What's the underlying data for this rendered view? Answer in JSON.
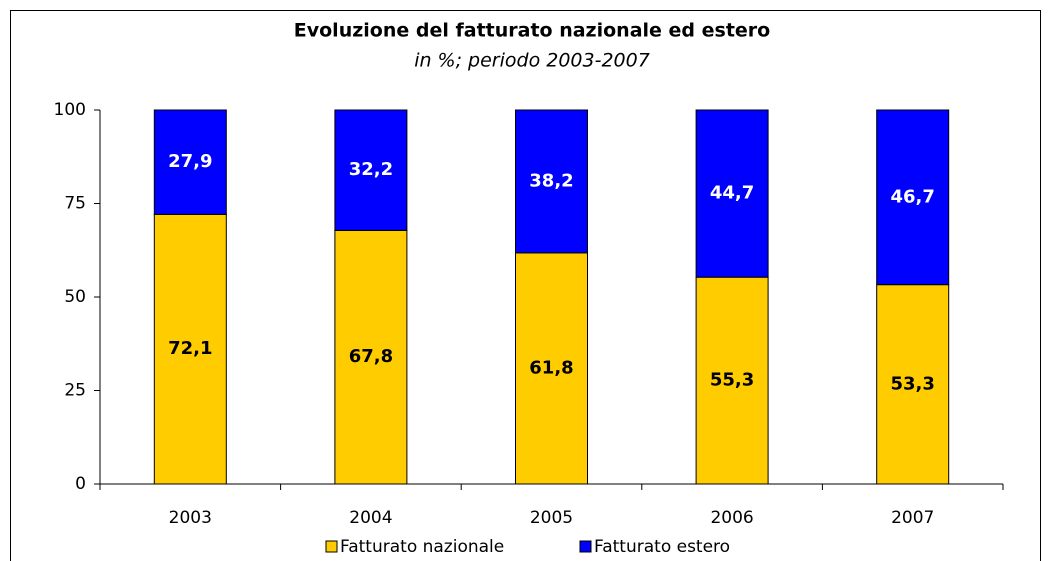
{
  "chart_data": {
    "type": "stacked_bar",
    "title": "Evoluzione del fatturato nazionale ed estero",
    "subtitle": "in %; periodo 2003-2007",
    "categories": [
      "2003",
      "2004",
      "2005",
      "2006",
      "2007"
    ],
    "series": [
      {
        "name": "Fatturato nazionale",
        "color": "#FFCC00",
        "values": [
          72.1,
          67.8,
          61.8,
          55.3,
          53.3
        ],
        "value_labels": [
          "72,1",
          "67,8",
          "61,8",
          "55,3",
          "53,3"
        ]
      },
      {
        "name": "Fatturato estero",
        "color": "#0000FF",
        "values": [
          27.9,
          32.2,
          38.2,
          44.7,
          46.7
        ],
        "value_labels": [
          "27,9",
          "32,2",
          "38,2",
          "44,7",
          "46,7"
        ]
      }
    ],
    "ylim": [
      0,
      100
    ],
    "yticks": [
      0,
      25,
      50,
      75,
      100
    ],
    "grid": false,
    "legend": "bottom"
  }
}
